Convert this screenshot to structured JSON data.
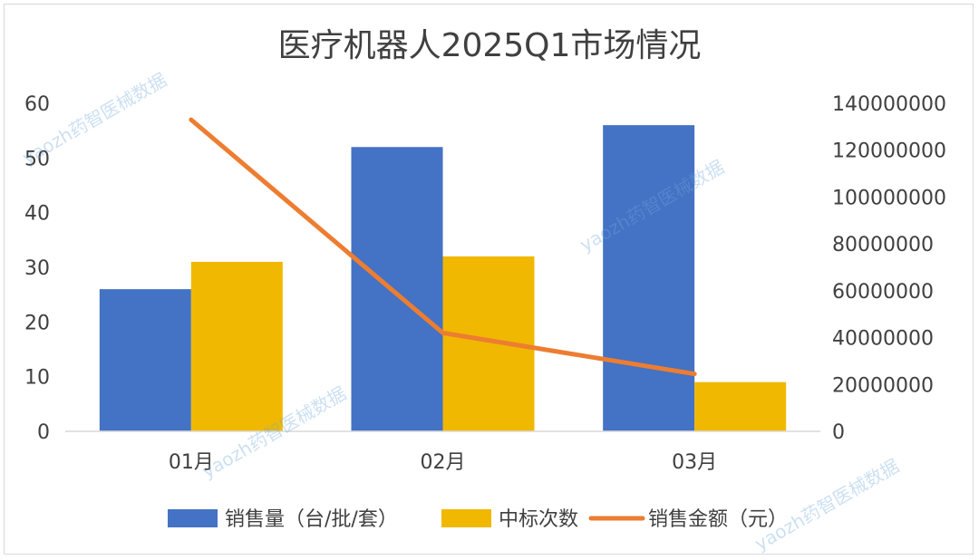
{
  "chart_data": {
    "type": "bar",
    "title": "医疗机器人2025Q1市场情况",
    "categories": [
      "01月",
      "02月",
      "03月"
    ],
    "series": [
      {
        "name": "销售量（台/批/套）",
        "type": "bar",
        "axis": "left",
        "color": "#4472c4",
        "values": [
          26,
          52,
          56
        ]
      },
      {
        "name": "中标次数",
        "type": "bar",
        "axis": "left",
        "color": "#f0b800",
        "values": [
          31,
          32,
          9
        ]
      },
      {
        "name": "销售金额（元）",
        "type": "line",
        "axis": "right",
        "color": "#ed7d31",
        "values": [
          133000000,
          42000000,
          24500000
        ]
      }
    ],
    "ylim": [
      0,
      60
    ],
    "y2lim": [
      0,
      140000000
    ],
    "yticks": [
      "0",
      "10",
      "20",
      "30",
      "40",
      "50",
      "60"
    ],
    "y2ticks": [
      "0",
      "20000000",
      "40000000",
      "60000000",
      "80000000",
      "100000000",
      "120000000",
      "140000000"
    ],
    "legend_position": "bottom",
    "grid": false
  },
  "watermark": "yaozh药智医械数据"
}
